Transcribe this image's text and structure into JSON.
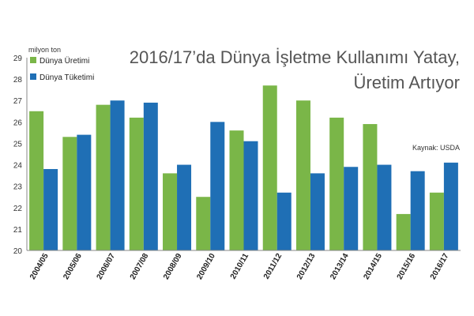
{
  "chart_data": {
    "type": "bar",
    "title_line1": "2016/17’da Dünya İşletme Kullanımı Yatay,",
    "title_line2": "Üretim Artıyor",
    "ylabel": "milyon ton",
    "source": "Kaynak: USDA",
    "ylim": [
      20,
      29
    ],
    "yticks": [
      20,
      21,
      22,
      23,
      24,
      25,
      26,
      27,
      28,
      29
    ],
    "categories": [
      "2004/05",
      "2005/06",
      "2006/07",
      "2007/08",
      "2008/09",
      "2009/10",
      "2010/11",
      "2011/12",
      "2012/13",
      "2013/14",
      "2014/15",
      "2015/16",
      "2016/17"
    ],
    "series": [
      {
        "name": "Dünya Üretimi",
        "color": "#7ab648",
        "values": [
          26.5,
          25.3,
          26.8,
          26.2,
          23.6,
          22.5,
          25.6,
          27.7,
          27.0,
          26.2,
          25.9,
          21.7,
          22.7
        ]
      },
      {
        "name": "Dünya Tüketimi",
        "color": "#1f6fb5",
        "values": [
          23.8,
          25.4,
          27.0,
          26.9,
          24.0,
          26.0,
          25.1,
          22.7,
          23.6,
          23.9,
          24.0,
          23.7,
          24.1
        ]
      }
    ],
    "grid": false,
    "legend_position": "top-left"
  }
}
